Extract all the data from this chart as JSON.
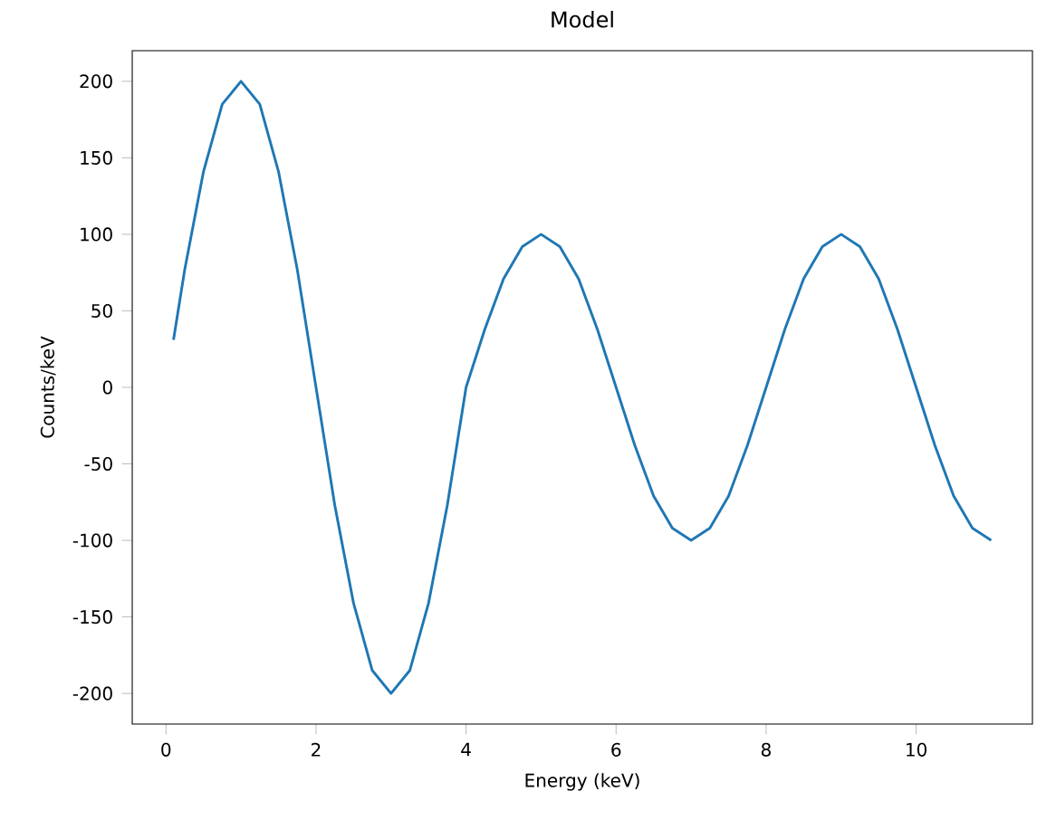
{
  "chart_data": {
    "type": "line",
    "title": "Model",
    "xlabel": "Energy (keV)",
    "ylabel": "Counts/keV",
    "x": [
      0.1,
      0.25,
      0.5,
      0.75,
      1,
      1.25,
      1.5,
      1.75,
      2,
      2.25,
      2.5,
      2.75,
      3,
      3.25,
      3.5,
      3.75,
      4,
      4.25,
      4.5,
      4.75,
      5,
      5.25,
      5.5,
      5.75,
      6,
      6.25,
      6.5,
      6.75,
      7,
      7.25,
      7.5,
      7.75,
      8,
      8.25,
      8.5,
      8.75,
      9,
      9.25,
      9.5,
      9.75,
      10,
      10.25,
      10.5,
      10.75,
      11
    ],
    "values": [
      31,
      77,
      141,
      185,
      200,
      185,
      141,
      77,
      0,
      -77,
      -141,
      -185,
      -200,
      -185,
      -141,
      -77,
      0,
      38,
      71,
      92,
      100,
      92,
      71,
      38,
      0,
      -38,
      -71,
      -92,
      -100,
      -92,
      -71,
      -38,
      0,
      38,
      71,
      92,
      100,
      92,
      71,
      38,
      0,
      -38,
      -71,
      -92,
      -100
    ],
    "color": "#1f77b4",
    "xlim": [
      -0.45,
      11.55
    ],
    "ylim": [
      -220,
      220
    ],
    "xticks": [
      0,
      2,
      4,
      6,
      8,
      10
    ],
    "yticks": [
      -200,
      -150,
      -100,
      -50,
      0,
      50,
      100,
      150,
      200
    ]
  }
}
